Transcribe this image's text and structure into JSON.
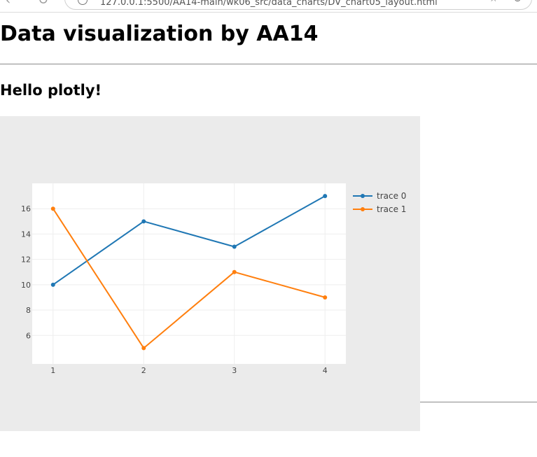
{
  "browser": {
    "url": "127.0.0.1:5500/AA14-main/wk06_src/data_charts/DV_chart05_layout.html"
  },
  "page": {
    "title": "Data visualization by AA14",
    "section_title": "Hello plotly!"
  },
  "colors": {
    "paper_bg": "#ebebeb",
    "plot_bg": "#ffffff",
    "trace_0": "#1f77b4",
    "trace_1": "#ff7f0e"
  },
  "chart_data": {
    "type": "line",
    "x": [
      1,
      2,
      3,
      4
    ],
    "series": [
      {
        "name": "trace 0",
        "values": [
          10,
          15,
          13,
          17
        ]
      },
      {
        "name": "trace 1",
        "values": [
          16,
          5,
          11,
          9
        ]
      }
    ],
    "xticks": [
      1,
      2,
      3,
      4
    ],
    "yticks": [
      6,
      8,
      10,
      12,
      14,
      16
    ],
    "xlim": [
      0.77,
      4.23
    ],
    "ylim": [
      3.75,
      18.0
    ],
    "markers": true,
    "grid": true,
    "legend_position": "top-right"
  }
}
